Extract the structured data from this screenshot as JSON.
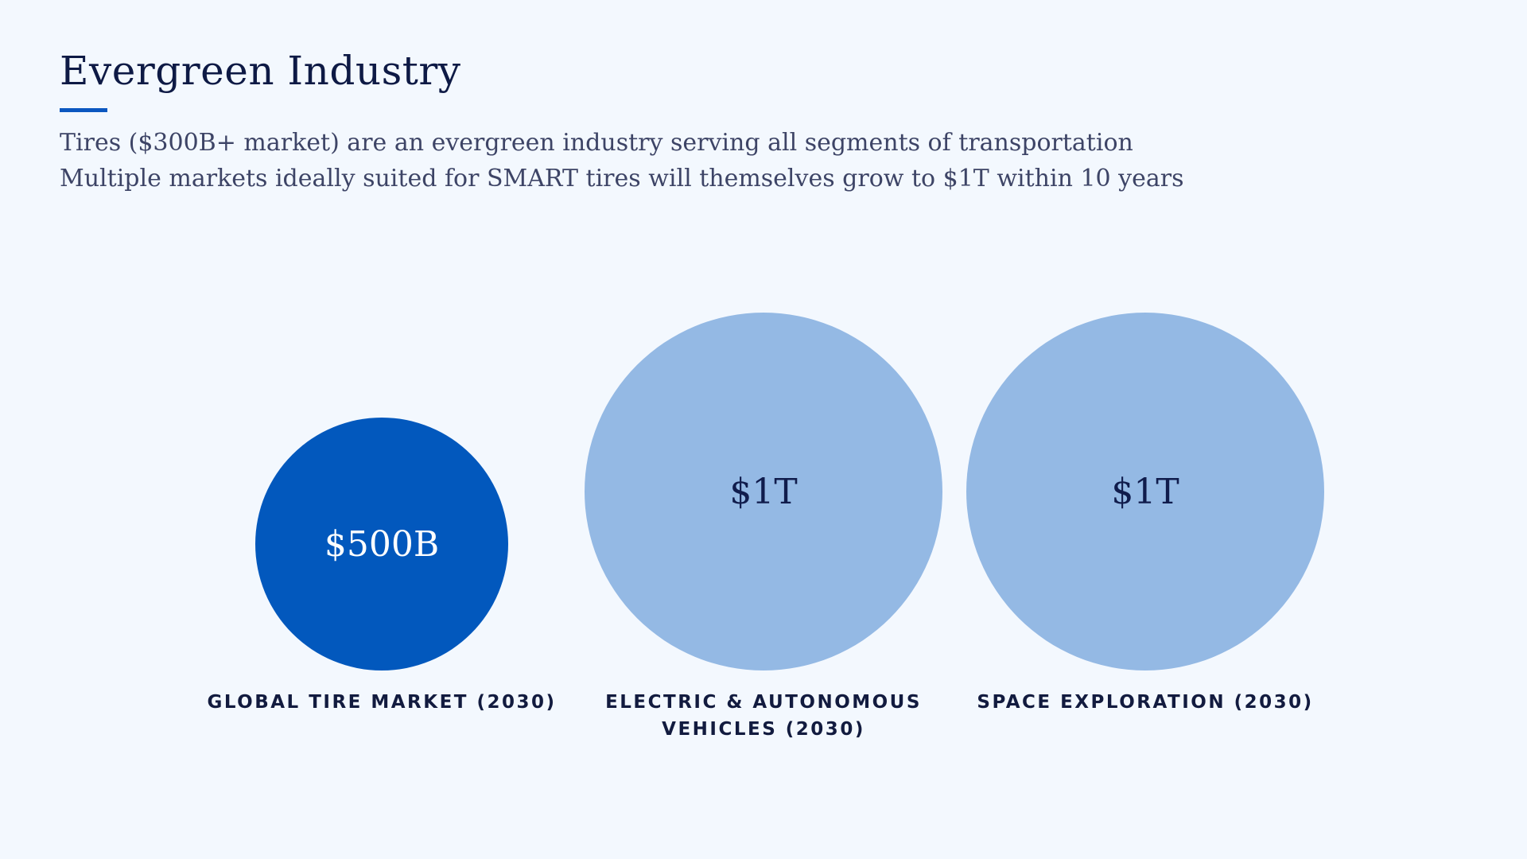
{
  "slide": {
    "title": "Evergreen Industry",
    "subtitle_lines": [
      "Tires ($300B+ market) are an evergreen industry serving all segments of transportation",
      "Multiple markets ideally suited for SMART tires will themselves grow to $1T within 10 years"
    ]
  },
  "markets": [
    {
      "value_label": "$500B",
      "value_usd_billions": 500,
      "label": "GLOBAL TIRE MARKET (2030)",
      "color": "#0258bd"
    },
    {
      "value_label": "$1T",
      "value_usd_billions": 1000,
      "label": "ELECTRIC & AUTONOMOUS VEHICLES (2030)",
      "color": "#94b9e4"
    },
    {
      "value_label": "$1T",
      "value_usd_billions": 1000,
      "label": "SPACE EXPLORATION (2030)",
      "color": "#94b9e4"
    }
  ],
  "colors": {
    "background": "#f3f8fe",
    "accent": "#0b57c0",
    "title_text": "#0e1a45",
    "body_text": "#3d4466"
  }
}
